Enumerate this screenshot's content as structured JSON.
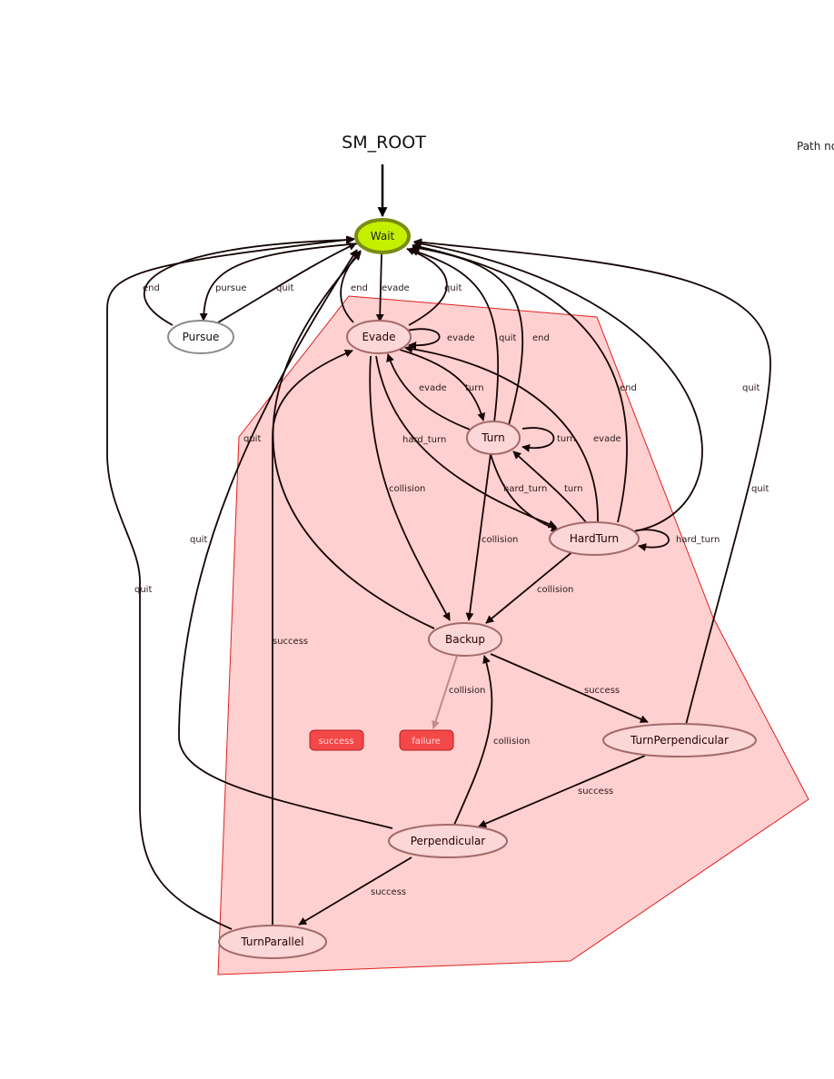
{
  "title": "SM_ROOT",
  "path_note": "Path no",
  "colors": {
    "active_fill": "#c4f000",
    "active_stroke": "#7a8c14",
    "container_fill": "#ffd0d0",
    "container_stroke": "#e02020",
    "state_fill": "#fcd7d7",
    "state_stroke": "#a36a6a",
    "outcome_fill": "#f44848",
    "edge": "#150505"
  },
  "states": {
    "wait": "Wait",
    "pursue": "Pursue",
    "evade": "Evade",
    "turn": "Turn",
    "hardturn": "HardTurn",
    "backup": "Backup",
    "turnperp": "TurnPerpendicular",
    "perp": "Perpendicular",
    "turnpar": "TurnParallel"
  },
  "outcomes": {
    "success": "success",
    "failure": "failure"
  },
  "edge_labels": {
    "end_pursue": "end",
    "pursue": "pursue",
    "quit_pursue": "quit",
    "end_evade": "end",
    "evade": "evade",
    "quit_evade": "quit",
    "evade_self": "evade",
    "quit_turn": "quit",
    "end_turn": "end",
    "evade_turn": "evade",
    "turn": "turn",
    "end_hardturn": "end",
    "quit_backup": "quit",
    "turn_self": "turn",
    "evade_hardturn": "evade",
    "hard_turn_evade": "hard_turn",
    "quit_turnperp_upper": "quit",
    "quit_turnperp_lower": "quit",
    "collision_evade": "collision",
    "hard_turn_turn": "hard_turn",
    "turn_hardturn": "turn",
    "quit_perp": "quit",
    "collision_turn": "collision",
    "hardturn_self": "hard_turn",
    "quit_turnpar": "quit",
    "collision_hardturn": "collision",
    "success_turnpar": "success",
    "success_backup": "success",
    "collision_backup": "collision",
    "collision_perp": "collision",
    "success_turnperp": "success",
    "success_perp": "success"
  }
}
